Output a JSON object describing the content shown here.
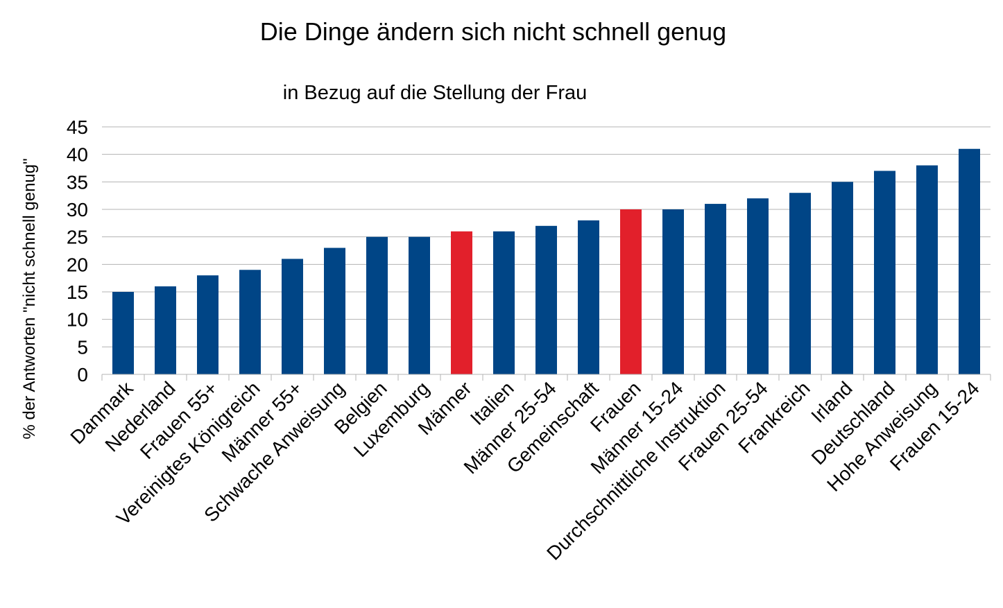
{
  "chart_data": {
    "type": "bar",
    "title": "Die Dinge ändern sich nicht schnell genug",
    "subtitle": "in Bezug auf die Stellung der Frau",
    "xlabel": "",
    "ylabel": "% der Antworten \"nicht schnell genug\"",
    "ylim": [
      0,
      45
    ],
    "yticks": [
      0,
      5,
      10,
      15,
      20,
      25,
      30,
      35,
      40,
      45
    ],
    "grid": true,
    "categories": [
      "Danmark",
      "Nederland",
      "Frauen 55+",
      "Vereinigtes Königreich",
      "Männer 55+",
      "Schwache Anweisung",
      "Belgien",
      "Luxemburg",
      "Männer",
      "Italien",
      "Männer 25-54",
      "Gemeinschaft",
      "Frauen",
      "Männer 15-24",
      "Durchschnittliche Instruktion",
      "Frauen 25-54",
      "Frankreich",
      "Irland",
      "Deutschland",
      "Hohe Anweisung",
      "Frauen 15-24"
    ],
    "values": [
      15,
      16,
      18,
      19,
      21,
      23,
      25,
      25,
      26,
      26,
      27,
      28,
      30,
      30,
      31,
      32,
      33,
      35,
      37,
      38,
      41
    ],
    "highlighted": [
      "Männer",
      "Frauen"
    ],
    "colors": {
      "default": "#004586",
      "highlight": "#e2202b"
    }
  }
}
